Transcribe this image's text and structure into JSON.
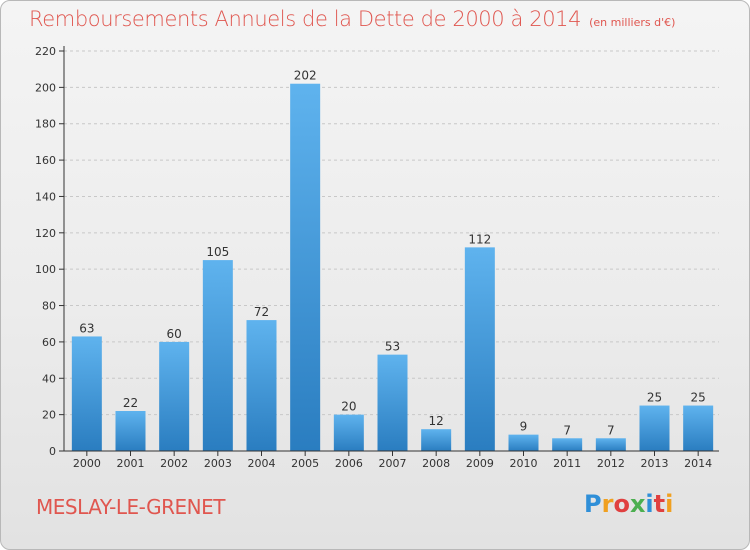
{
  "header": {
    "title": "Remboursements Annuels de la Dette de 2000 à 2014",
    "unit": "(en milliers d'€)"
  },
  "footer": {
    "commune": "MESLAY-LE-GRENET",
    "logo_letters": [
      "P",
      "r",
      "o",
      "x",
      "i",
      "t",
      "i"
    ],
    "logo_colors": [
      "#2f8fd8",
      "#f0a020",
      "#e04040",
      "#4caf50",
      "#2f8fd8",
      "#e04040",
      "#f0a020"
    ]
  },
  "colors": {
    "title": "#e0564f",
    "bar_light": "#5fb3ee",
    "bar_dark": "#2a7dc0",
    "axis": "#333333",
    "grid": "#c8c8c8"
  },
  "chart_data": {
    "type": "bar",
    "title": "Remboursements Annuels de la Dette de 2000 à 2014",
    "subtitle": "(en milliers d'€)",
    "categories": [
      "2000",
      "2001",
      "2002",
      "2003",
      "2004",
      "2005",
      "2006",
      "2007",
      "2008",
      "2009",
      "2010",
      "2011",
      "2012",
      "2013",
      "2014"
    ],
    "values": [
      63,
      22,
      60,
      105,
      72,
      202,
      20,
      53,
      12,
      112,
      9,
      7,
      7,
      25,
      25
    ],
    "ylim": [
      0,
      220
    ],
    "yticks": [
      0,
      20,
      40,
      60,
      80,
      100,
      120,
      140,
      160,
      180,
      200,
      220
    ],
    "grid": true,
    "xlabel": "",
    "ylabel": ""
  }
}
